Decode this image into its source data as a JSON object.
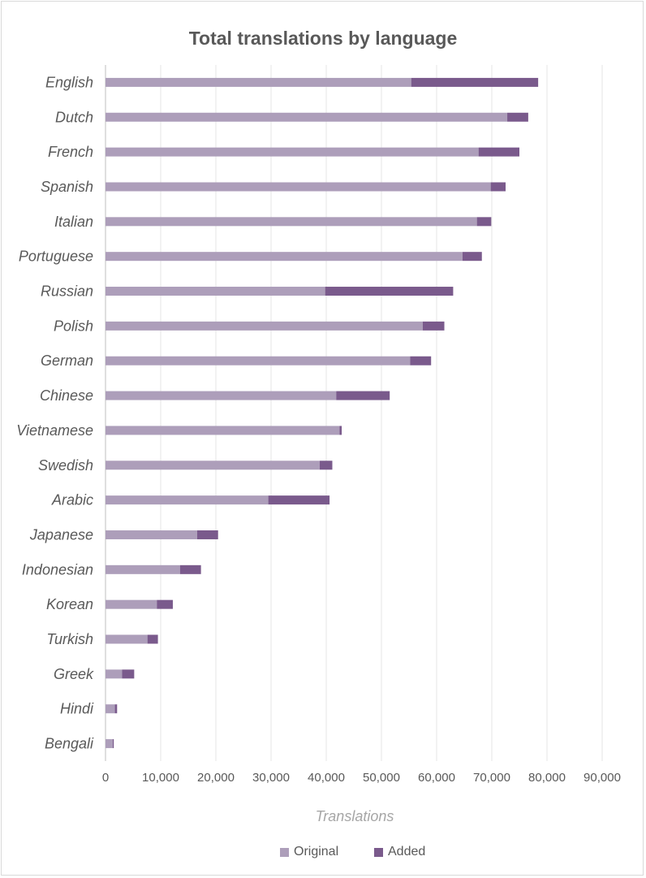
{
  "chart_data": {
    "type": "bar",
    "orientation": "horizontal",
    "stacked": true,
    "title": "Total translations by language",
    "xlabel": "Translations",
    "ylabel": "",
    "xlim": [
      0,
      90000
    ],
    "xticks": [
      "0",
      "10,000",
      "20,000",
      "30,000",
      "40,000",
      "50,000",
      "60,000",
      "70,000",
      "80,000",
      "90,000"
    ],
    "grid": true,
    "legend_position": "bottom",
    "categories": [
      "English",
      "Dutch",
      "French",
      "Spanish",
      "Italian",
      "Portuguese",
      "Russian",
      "Polish",
      "German",
      "Chinese",
      "Vietnamese",
      "Swedish",
      "Arabic",
      "Japanese",
      "Indonesian",
      "Korean",
      "Turkish",
      "Greek",
      "Hindi",
      "Bengali"
    ],
    "series": [
      {
        "name": "Original",
        "color": "#ad9eba",
        "values": [
          55400,
          72800,
          67600,
          69800,
          67300,
          64700,
          39800,
          57500,
          55200,
          41800,
          42400,
          38800,
          29500,
          16600,
          13500,
          9300,
          7600,
          3000,
          1700,
          1300
        ]
      },
      {
        "name": "Added",
        "color": "#7a5a8c",
        "values": [
          23000,
          3800,
          7400,
          2700,
          2600,
          3500,
          23200,
          3900,
          3800,
          9700,
          400,
          2300,
          11100,
          3800,
          3800,
          2900,
          1900,
          2200,
          400,
          200
        ]
      }
    ]
  }
}
